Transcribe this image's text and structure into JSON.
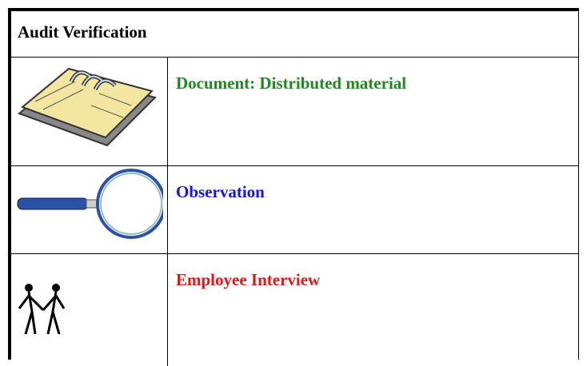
{
  "header": {
    "title": "Audit Verification"
  },
  "rows": [
    {
      "label": "Document: Distributed material",
      "color": "#1e8a1e"
    },
    {
      "label": "Observation",
      "color": "#1414e6"
    },
    {
      "label": "Employee Interview",
      "color": "#e61414"
    }
  ]
}
